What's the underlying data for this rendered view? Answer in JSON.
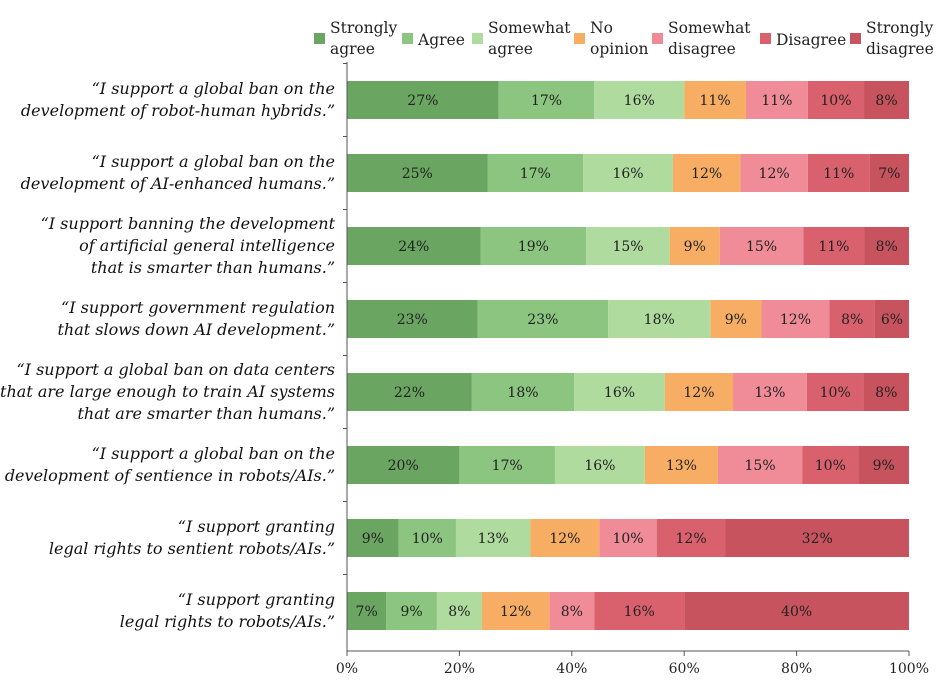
{
  "chart_data": {
    "type": "bar",
    "orientation": "horizontal-stacked-100",
    "legend_position": "top",
    "colors": [
      "#6aa562",
      "#8bc57f",
      "#afdb9f",
      "#f7ae64",
      "#f08c98",
      "#d9616e",
      "#c7535e"
    ],
    "series": [
      {
        "name": "Strongly agree",
        "legend_lines": [
          "Strongly",
          "agree"
        ]
      },
      {
        "name": "Agree",
        "legend_lines": [
          "Agree"
        ]
      },
      {
        "name": "Somewhat agree",
        "legend_lines": [
          "Somewhat",
          "agree"
        ]
      },
      {
        "name": "No opinion",
        "legend_lines": [
          "No",
          "opinion"
        ]
      },
      {
        "name": "Somewhat disagree",
        "legend_lines": [
          "Somewhat",
          "disagree"
        ]
      },
      {
        "name": "Disagree",
        "legend_lines": [
          "Disagree"
        ]
      },
      {
        "name": "Strongly disagree",
        "legend_lines": [
          "Strongly",
          "disagree"
        ]
      }
    ],
    "categories": [
      {
        "lines": [
          "“I support a global ban on the",
          "development of robot-human hybrids.”"
        ],
        "values": [
          27,
          17,
          16,
          11,
          11,
          10,
          8
        ]
      },
      {
        "lines": [
          "“I support a global ban on the",
          "development of AI-enhanced humans.”"
        ],
        "values": [
          25,
          17,
          16,
          12,
          12,
          11,
          7
        ]
      },
      {
        "lines": [
          "“I support banning the development",
          "of artificial general intelligence",
          "that is smarter than humans.”"
        ],
        "values": [
          24,
          19,
          15,
          9,
          15,
          11,
          8
        ]
      },
      {
        "lines": [
          "“I support government regulation",
          "that slows down AI development.”"
        ],
        "values": [
          23,
          23,
          18,
          9,
          12,
          8,
          6
        ]
      },
      {
        "lines": [
          "“I support a global ban on data centers",
          "that are large enough to train AI systems",
          "that are smarter than humans.”"
        ],
        "values": [
          22,
          18,
          16,
          12,
          13,
          10,
          8
        ]
      },
      {
        "lines": [
          "“I support a global ban on the",
          "development of sentience in robots/AIs.”"
        ],
        "values": [
          20,
          17,
          16,
          13,
          15,
          10,
          9
        ]
      },
      {
        "lines": [
          "“I support granting",
          "legal rights to sentient robots/AIs.”"
        ],
        "values": [
          9,
          10,
          13,
          12,
          10,
          12,
          32
        ]
      },
      {
        "lines": [
          "“I support granting",
          "legal rights to robots/AIs.”"
        ],
        "values": [
          7,
          9,
          8,
          12,
          8,
          16,
          40
        ]
      }
    ],
    "x_ticks": [
      "0%",
      "20%",
      "40%",
      "60%",
      "80%",
      "100%"
    ],
    "xlim": [
      0,
      100
    ],
    "xlabel": "",
    "ylabel": "",
    "grid": false
  }
}
